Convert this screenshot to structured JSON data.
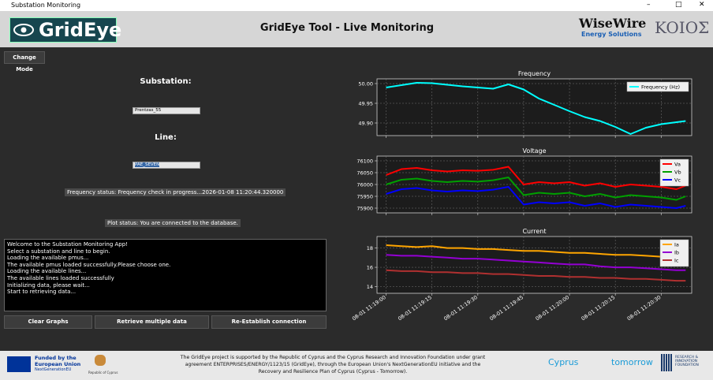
{
  "window": {
    "title": "Substation Monitoring"
  },
  "header": {
    "logo": "GridEye",
    "title": "GridEye Tool - Live Monitoring",
    "partner_logo": "WiseWire",
    "partner_subtitle": "Energy Solutions",
    "partner2_logo": "KOIOΣ"
  },
  "controls": {
    "change_mode": "Change Mode",
    "substation_label": "Substation:",
    "substation_value": "Prentzas_55",
    "line_label": "Line:",
    "line_value": "PAE_SEVEN",
    "frequency_status": "Frequency status: Frequency check in progress...2026-01-08 11:20:44.320000",
    "plot_status": "Plot status: You are connected to the database."
  },
  "log": [
    "Welcome to the Substation Monitoring App!",
    "Select a substation and line to begin.",
    "Loading the available pmus...",
    "The available pmus loaded successfully.Please choose one.",
    "Loading the available lines...",
    "The available lines loaded successfully",
    "Initializing data, please wait...",
    "Start to retrieving data..."
  ],
  "buttons": [
    "Clear Graphs",
    "Retrieve multiple data",
    "Re-Establish connection"
  ],
  "chart_data": [
    {
      "type": "line",
      "title": "Frequency",
      "x": [
        "08-01 11:19:00",
        "08-01 11:19:05",
        "08-01 11:19:10",
        "08-01 11:19:15",
        "08-01 11:19:20",
        "08-01 11:19:25",
        "08-01 11:19:30",
        "08-01 11:19:35",
        "08-01 11:19:40",
        "08-01 11:19:45",
        "08-01 11:19:50",
        "08-01 11:19:55",
        "08-01 11:20:00",
        "08-01 11:20:05",
        "08-01 11:20:10",
        "08-01 11:20:15",
        "08-01 11:20:20",
        "08-01 11:20:25",
        "08-01 11:20:30",
        "08-01 11:20:35",
        "08-01 11:20:38"
      ],
      "series": [
        {
          "name": "Frequency (Hz)",
          "color": "#00ffff",
          "values": [
            49.99,
            49.996,
            50.002,
            50.001,
            49.997,
            49.993,
            49.99,
            49.987,
            49.998,
            49.985,
            49.962,
            49.946,
            49.93,
            49.915,
            49.905,
            49.89,
            49.872,
            49.888,
            49.897,
            49.902,
            49.905
          ]
        }
      ],
      "ylim": [
        49.868,
        50.012
      ],
      "yticks": [
        {
          "value": 50.0,
          "label": "50.00"
        },
        {
          "value": 49.95,
          "label": "49.95"
        },
        {
          "value": 49.9,
          "label": "49.90"
        }
      ],
      "grid": true,
      "legend": "upper right"
    },
    {
      "type": "line",
      "title": "Voltage",
      "x": [
        "08-01 11:19:00",
        "08-01 11:19:05",
        "08-01 11:19:10",
        "08-01 11:19:15",
        "08-01 11:19:20",
        "08-01 11:19:25",
        "08-01 11:19:30",
        "08-01 11:19:35",
        "08-01 11:19:40",
        "08-01 11:19:45",
        "08-01 11:19:50",
        "08-01 11:19:55",
        "08-01 11:20:00",
        "08-01 11:20:05",
        "08-01 11:20:10",
        "08-01 11:20:15",
        "08-01 11:20:20",
        "08-01 11:20:25",
        "08-01 11:20:30",
        "08-01 11:20:35",
        "08-01 11:20:38"
      ],
      "series": [
        {
          "name": "Va",
          "color": "#ff0000",
          "values": [
            76040,
            76065,
            76070,
            76060,
            76055,
            76060,
            76058,
            76062,
            76075,
            76000,
            76010,
            76005,
            76010,
            75995,
            76005,
            75990,
            76000,
            75995,
            75990,
            75980,
            75995
          ]
        },
        {
          "name": "Vb",
          "color": "#00a000",
          "values": [
            76000,
            76020,
            76025,
            76015,
            76010,
            76015,
            76012,
            76018,
            76030,
            75955,
            75965,
            75960,
            75965,
            75950,
            75960,
            75945,
            75955,
            75950,
            75945,
            75935,
            75950
          ]
        },
        {
          "name": "Vc",
          "color": "#0000ff",
          "values": [
            75960,
            75980,
            75985,
            75975,
            75970,
            75975,
            75972,
            75978,
            75990,
            75915,
            75925,
            75920,
            75925,
            75910,
            75920,
            75905,
            75915,
            75910,
            75905,
            75900,
            75910
          ]
        }
      ],
      "ylim": [
        75880,
        76120
      ],
      "yticks": [
        {
          "value": 76100,
          "label": "76100"
        },
        {
          "value": 76050,
          "label": "76050"
        },
        {
          "value": 76000,
          "label": "76000"
        },
        {
          "value": 75950,
          "label": "75950"
        },
        {
          "value": 75900,
          "label": "75900"
        }
      ],
      "grid": true,
      "legend": "upper right"
    },
    {
      "type": "line",
      "title": "Current",
      "x": [
        "08-01 11:19:00",
        "08-01 11:19:05",
        "08-01 11:19:10",
        "08-01 11:19:15",
        "08-01 11:19:20",
        "08-01 11:19:25",
        "08-01 11:19:30",
        "08-01 11:19:35",
        "08-01 11:19:40",
        "08-01 11:19:45",
        "08-01 11:19:50",
        "08-01 11:19:55",
        "08-01 11:20:00",
        "08-01 11:20:05",
        "08-01 11:20:10",
        "08-01 11:20:15",
        "08-01 11:20:20",
        "08-01 11:20:25",
        "08-01 11:20:30",
        "08-01 11:20:35",
        "08-01 11:20:38"
      ],
      "series": [
        {
          "name": "Ia",
          "color": "#ffa500",
          "values": [
            18.3,
            18.2,
            18.1,
            18.2,
            18.0,
            18.0,
            17.9,
            17.9,
            17.8,
            17.7,
            17.7,
            17.6,
            17.5,
            17.5,
            17.4,
            17.3,
            17.3,
            17.2,
            17.1,
            17.0,
            17.0
          ]
        },
        {
          "name": "Ib",
          "color": "#9400d3",
          "values": [
            17.3,
            17.2,
            17.2,
            17.1,
            17.0,
            16.9,
            16.9,
            16.8,
            16.7,
            16.6,
            16.5,
            16.4,
            16.3,
            16.3,
            16.1,
            16.0,
            16.0,
            15.9,
            15.8,
            15.7,
            15.7
          ]
        },
        {
          "name": "Ic",
          "color": "#b03030",
          "values": [
            15.7,
            15.6,
            15.6,
            15.5,
            15.5,
            15.4,
            15.4,
            15.3,
            15.3,
            15.2,
            15.1,
            15.1,
            15.0,
            15.0,
            14.9,
            14.9,
            14.8,
            14.8,
            14.7,
            14.6,
            14.6
          ]
        }
      ],
      "ylim": [
        13.3,
        19.2
      ],
      "yticks": [
        18,
        16,
        14
      ],
      "xlim": [
        "08-01 11:18:57",
        "08-01 11:20:40"
      ],
      "xticks": [
        "08-01 11:19:00",
        "08-01 11:19:15",
        "08-01 11:19:30",
        "08-01 11:19:45",
        "08-01 11:20:00",
        "08-01 11:20:15",
        "08-01 11:20:30"
      ],
      "grid": true,
      "legend": "upper right"
    }
  ],
  "footer": {
    "eu_line1": "Funded by the",
    "eu_line2": "European Union",
    "eu_line3": "NextGenerationEU",
    "cyprus": "Republic of Cyprus",
    "text": "The GridEye project is supported by the Republic of Cyprus and the Cyprus Research and Innovation Foundation under grant agreement ENTERPRISES/ENERGY/1123/15 (GridEye), through the European Union's NextGenerationEU initiative and the Recovery and Resilience Plan of Cyprus (Cyprus - Tomorrow).",
    "cyprus_tomorrow_1": "Cyprus",
    "cyprus_tomorrow_2": "tomorrow",
    "rif": "RESEARCH & INNOVATION FOUNDATION"
  }
}
